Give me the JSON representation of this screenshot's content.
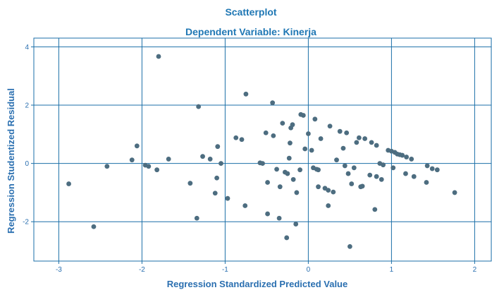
{
  "chart_data": {
    "type": "scatter",
    "title": "Scatterplot",
    "subtitle": "Dependent Variable: Kinerja",
    "xlabel": "Regression Standardized Predicted Value",
    "ylabel": "Regression Studentized Residual",
    "xlim": [
      -3.3,
      2.2
    ],
    "ylim": [
      -3.35,
      4.3
    ],
    "xticks": [
      -3,
      -2,
      -1,
      0,
      1,
      2
    ],
    "yticks": [
      -2,
      0,
      2,
      4
    ],
    "xtick_labels": [
      "-3",
      "-2",
      "-1",
      "0",
      "1",
      "2"
    ],
    "ytick_labels": [
      "-2",
      "0",
      "2",
      "4"
    ],
    "grid": true,
    "point_color": "#4d6d80",
    "line_color": "#1b6fa8",
    "points": [
      {
        "x": -2.88,
        "y": -0.7
      },
      {
        "x": -2.58,
        "y": -2.17
      },
      {
        "x": -2.42,
        "y": -0.1
      },
      {
        "x": -2.12,
        "y": 0.12
      },
      {
        "x": -2.06,
        "y": 0.6
      },
      {
        "x": -1.96,
        "y": -0.06
      },
      {
        "x": -1.92,
        "y": -0.1
      },
      {
        "x": -1.82,
        "y": -0.22
      },
      {
        "x": -1.8,
        "y": 3.67
      },
      {
        "x": -1.68,
        "y": 0.15
      },
      {
        "x": -1.42,
        "y": -0.68
      },
      {
        "x": -1.34,
        "y": -1.88
      },
      {
        "x": -1.32,
        "y": 1.95
      },
      {
        "x": -1.27,
        "y": 0.24
      },
      {
        "x": -1.18,
        "y": 0.15
      },
      {
        "x": -1.12,
        "y": -1.02
      },
      {
        "x": -1.1,
        "y": -0.5
      },
      {
        "x": -1.09,
        "y": 0.58
      },
      {
        "x": -1.05,
        "y": 0.0
      },
      {
        "x": -0.97,
        "y": -1.2
      },
      {
        "x": -0.87,
        "y": 0.88
      },
      {
        "x": -0.8,
        "y": 0.82
      },
      {
        "x": -0.76,
        "y": -1.45
      },
      {
        "x": -0.75,
        "y": 2.38
      },
      {
        "x": -0.58,
        "y": 0.02
      },
      {
        "x": -0.55,
        "y": 0.0
      },
      {
        "x": -0.51,
        "y": 1.05
      },
      {
        "x": -0.49,
        "y": -0.65
      },
      {
        "x": -0.49,
        "y": -1.73
      },
      {
        "x": -0.43,
        "y": 2.08
      },
      {
        "x": -0.42,
        "y": 0.95
      },
      {
        "x": -0.38,
        "y": -0.2
      },
      {
        "x": -0.35,
        "y": -1.88
      },
      {
        "x": -0.34,
        "y": -0.8
      },
      {
        "x": -0.31,
        "y": 1.38
      },
      {
        "x": -0.28,
        "y": -0.3
      },
      {
        "x": -0.26,
        "y": -2.55
      },
      {
        "x": -0.25,
        "y": -0.35
      },
      {
        "x": -0.23,
        "y": 0.18
      },
      {
        "x": -0.22,
        "y": 0.7
      },
      {
        "x": -0.21,
        "y": 1.22
      },
      {
        "x": -0.19,
        "y": 1.33
      },
      {
        "x": -0.18,
        "y": -0.55
      },
      {
        "x": -0.15,
        "y": -2.08
      },
      {
        "x": -0.14,
        "y": -1.0
      },
      {
        "x": -0.1,
        "y": -0.22
      },
      {
        "x": -0.09,
        "y": 1.68
      },
      {
        "x": -0.06,
        "y": 1.65
      },
      {
        "x": -0.04,
        "y": 0.5
      },
      {
        "x": 0.0,
        "y": 1.02
      },
      {
        "x": 0.04,
        "y": 0.45
      },
      {
        "x": 0.06,
        "y": -0.15
      },
      {
        "x": 0.08,
        "y": 1.52
      },
      {
        "x": 0.1,
        "y": -0.2
      },
      {
        "x": 0.12,
        "y": -0.22
      },
      {
        "x": 0.12,
        "y": -0.8
      },
      {
        "x": 0.15,
        "y": 0.85
      },
      {
        "x": 0.2,
        "y": -0.85
      },
      {
        "x": 0.24,
        "y": -0.92
      },
      {
        "x": 0.24,
        "y": -1.45
      },
      {
        "x": 0.26,
        "y": 1.28
      },
      {
        "x": 0.3,
        "y": -0.98
      },
      {
        "x": 0.34,
        "y": 0.12
      },
      {
        "x": 0.38,
        "y": 1.1
      },
      {
        "x": 0.42,
        "y": 0.52
      },
      {
        "x": 0.44,
        "y": -0.08
      },
      {
        "x": 0.46,
        "y": 1.05
      },
      {
        "x": 0.48,
        "y": -0.35
      },
      {
        "x": 0.5,
        "y": -2.85
      },
      {
        "x": 0.52,
        "y": -0.7
      },
      {
        "x": 0.55,
        "y": -0.15
      },
      {
        "x": 0.58,
        "y": 0.72
      },
      {
        "x": 0.61,
        "y": 0.88
      },
      {
        "x": 0.63,
        "y": -0.8
      },
      {
        "x": 0.65,
        "y": -0.78
      },
      {
        "x": 0.68,
        "y": 0.85
      },
      {
        "x": 0.74,
        "y": -0.4
      },
      {
        "x": 0.76,
        "y": 0.72
      },
      {
        "x": 0.8,
        "y": -1.58
      },
      {
        "x": 0.82,
        "y": 0.62
      },
      {
        "x": 0.82,
        "y": -0.45
      },
      {
        "x": 0.86,
        "y": 0.0
      },
      {
        "x": 0.88,
        "y": -0.55
      },
      {
        "x": 0.9,
        "y": -0.05
      },
      {
        "x": 0.96,
        "y": 0.45
      },
      {
        "x": 1.0,
        "y": 0.42
      },
      {
        "x": 1.02,
        "y": -0.15
      },
      {
        "x": 1.04,
        "y": 0.38
      },
      {
        "x": 1.07,
        "y": 0.32
      },
      {
        "x": 1.1,
        "y": 0.3
      },
      {
        "x": 1.13,
        "y": 0.28
      },
      {
        "x": 1.17,
        "y": -0.35
      },
      {
        "x": 1.18,
        "y": 0.22
      },
      {
        "x": 1.24,
        "y": 0.15
      },
      {
        "x": 1.27,
        "y": -0.45
      },
      {
        "x": 1.42,
        "y": -0.65
      },
      {
        "x": 1.43,
        "y": -0.08
      },
      {
        "x": 1.49,
        "y": -0.18
      },
      {
        "x": 1.55,
        "y": -0.22
      },
      {
        "x": 1.76,
        "y": -1.0
      }
    ]
  }
}
